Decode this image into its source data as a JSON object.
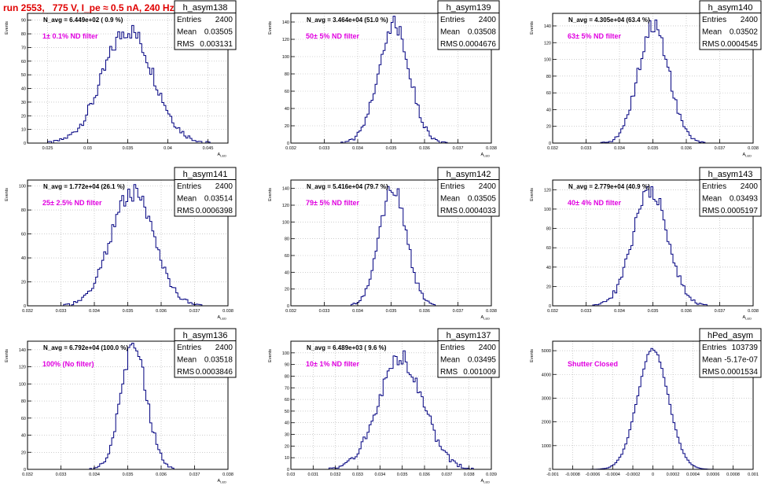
{
  "title": "run 2553,   775 V, I_pe ≈ 0.5 nA, 240 Hz",
  "colors": {
    "title": "#e00000",
    "hist": "#000080",
    "grid": "#b0b0b0",
    "label": "#e000e0"
  },
  "chart_data": [
    {
      "type": "histogram",
      "name": "h_asym138",
      "stats": {
        "entries": "2400",
        "mean": "0.03505",
        "rms": "0.003131"
      },
      "navg": "N_avg = 6.449e+02 ( 0.9 %)",
      "label": "1± 0.1% ND filter",
      "xlabel": "A_{LED}",
      "ylabel": "Events",
      "xlim": [
        0.0225,
        0.0475
      ],
      "ylim": [
        0,
        95
      ],
      "xticks": [
        0.025,
        0.03,
        0.035,
        0.04,
        0.045
      ],
      "yticks": [
        0,
        10,
        20,
        30,
        40,
        50,
        60,
        70,
        80,
        90
      ],
      "dist": {
        "mean": 0.03505,
        "sigma": 0.003131,
        "peak": 83
      }
    },
    {
      "type": "histogram",
      "name": "h_asym139",
      "stats": {
        "entries": "2400",
        "mean": "0.03508",
        "rms": "0.0004676"
      },
      "navg": "N_avg = 3.464e+04 (51.0 %)",
      "label": "50± 5% ND filter",
      "xlabel": "A_{LED}",
      "ylabel": "Events",
      "xlim": [
        0.032,
        0.038
      ],
      "ylim": [
        0,
        150
      ],
      "xticks": [
        0.032,
        0.033,
        0.034,
        0.035,
        0.036,
        0.037,
        0.038
      ],
      "yticks": [
        0,
        20,
        40,
        60,
        80,
        100,
        120,
        140
      ],
      "dist": {
        "mean": 0.03508,
        "sigma": 0.0004676,
        "peak": 138
      }
    },
    {
      "type": "histogram",
      "name": "h_asym140",
      "stats": {
        "entries": "2400",
        "mean": "0.03502",
        "rms": "0.0004545"
      },
      "navg": "N_avg = 4.305e+04 (63.4 %)",
      "label": "63± 5% ND filter",
      "xlabel": "A_{LED}",
      "ylabel": "Events",
      "xlim": [
        0.032,
        0.038
      ],
      "ylim": [
        0,
        155
      ],
      "xticks": [
        0.032,
        0.033,
        0.034,
        0.035,
        0.036,
        0.037,
        0.038
      ],
      "yticks": [
        0,
        20,
        40,
        60,
        80,
        100,
        120,
        140
      ],
      "dist": {
        "mean": 0.03502,
        "sigma": 0.0004545,
        "peak": 142
      }
    },
    {
      "type": "histogram",
      "name": "h_asym141",
      "stats": {
        "entries": "2400",
        "mean": "0.03514",
        "rms": "0.0006398"
      },
      "navg": "N_avg = 1.772e+04 (26.1 %)",
      "label": "25± 2.5% ND filter",
      "xlabel": "A_{LED}",
      "ylabel": "Events",
      "xlim": [
        0.032,
        0.038
      ],
      "ylim": [
        0,
        105
      ],
      "xticks": [
        0.032,
        0.033,
        0.034,
        0.035,
        0.036,
        0.037,
        0.038
      ],
      "yticks": [
        0,
        20,
        40,
        60,
        80,
        100
      ],
      "dist": {
        "mean": 0.03514,
        "sigma": 0.0006398,
        "peak": 95
      }
    },
    {
      "type": "histogram",
      "name": "h_asym142",
      "stats": {
        "entries": "2400",
        "mean": "0.03505",
        "rms": "0.0004033"
      },
      "navg": "N_avg = 5.416e+04 (79.7 %)",
      "label": "79± 5% ND filter",
      "xlabel": "A_{LED}",
      "ylabel": "Events",
      "xlim": [
        0.032,
        0.038
      ],
      "ylim": [
        0,
        150
      ],
      "xticks": [
        0.032,
        0.033,
        0.034,
        0.035,
        0.036,
        0.037,
        0.038
      ],
      "yticks": [
        0,
        20,
        40,
        60,
        80,
        100,
        120,
        140
      ],
      "dist": {
        "mean": 0.03505,
        "sigma": 0.0004033,
        "peak": 142
      }
    },
    {
      "type": "histogram",
      "name": "h_asym143",
      "stats": {
        "entries": "2400",
        "mean": "0.03493",
        "rms": "0.0005197"
      },
      "navg": "N_avg = 2.779e+04 (40.9 %)",
      "label": "40± 4% ND filter",
      "xlabel": "A_{LED}",
      "ylabel": "Events",
      "xlim": [
        0.032,
        0.038
      ],
      "ylim": [
        0,
        130
      ],
      "xticks": [
        0.032,
        0.033,
        0.034,
        0.035,
        0.036,
        0.037,
        0.038
      ],
      "yticks": [
        0,
        20,
        40,
        60,
        80,
        100,
        120
      ],
      "dist": {
        "mean": 0.03493,
        "sigma": 0.0005197,
        "peak": 120
      }
    },
    {
      "type": "histogram",
      "name": "h_asym136",
      "stats": {
        "entries": "2400",
        "mean": "0.03518",
        "rms": "0.0003846"
      },
      "navg": "N_avg = 6.792e+04 (100.0 %)",
      "label": "100% (No filter)",
      "xlabel": "A_{LED}",
      "ylabel": "Events",
      "xlim": [
        0.032,
        0.038
      ],
      "ylim": [
        0,
        150
      ],
      "xticks": [
        0.032,
        0.033,
        0.034,
        0.035,
        0.036,
        0.037,
        0.038
      ],
      "yticks": [
        0,
        20,
        40,
        60,
        80,
        100,
        120,
        140
      ],
      "dist": {
        "mean": 0.03518,
        "sigma": 0.0003846,
        "peak": 145
      }
    },
    {
      "type": "histogram",
      "name": "h_asym137",
      "stats": {
        "entries": "2400",
        "mean": "0.03495",
        "rms": "0.001009"
      },
      "navg": "N_avg = 6.489e+03 ( 9.6 %)",
      "label": "10± 1% ND filter",
      "xlabel": "A_{LED}",
      "ylabel": "Events",
      "xlim": [
        0.03,
        0.039
      ],
      "ylim": [
        0,
        110
      ],
      "xticks": [
        0.03,
        0.031,
        0.032,
        0.033,
        0.034,
        0.035,
        0.036,
        0.037,
        0.038,
        0.039
      ],
      "yticks": [
        0,
        10,
        20,
        30,
        40,
        50,
        60,
        70,
        80,
        90,
        100
      ],
      "dist": {
        "mean": 0.03495,
        "sigma": 0.001009,
        "peak": 95
      }
    },
    {
      "type": "histogram",
      "name": "hPed_asym",
      "stats": {
        "entries": "103739",
        "mean": "-5.17e-07",
        "rms": "0.0001534"
      },
      "navg": "",
      "label": "Shutter Closed",
      "xlabel": "",
      "ylabel": "Events",
      "xlim": [
        -0.001,
        0.001
      ],
      "ylim": [
        0,
        5400
      ],
      "xticks": [
        -0.001,
        -0.0008,
        -0.0006,
        -0.0004,
        -0.0002,
        0,
        0.0002,
        0.0004,
        0.0006,
        0.0008,
        0.001
      ],
      "yticks": [
        0,
        1000,
        2000,
        3000,
        4000,
        5000
      ],
      "dist": {
        "mean": 0.0,
        "sigma": 0.0001534,
        "peak": 5050
      }
    }
  ]
}
